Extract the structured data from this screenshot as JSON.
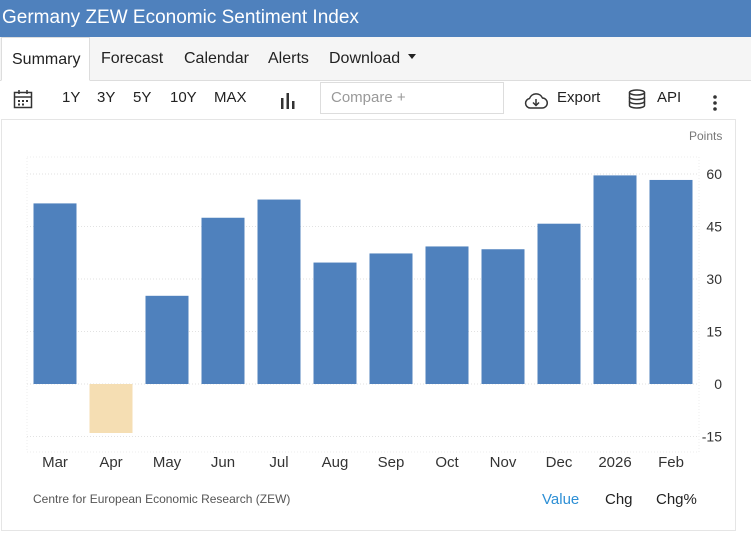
{
  "title": "Germany ZEW Economic Sentiment Index",
  "tabs": [
    {
      "label": "Summary",
      "active": true
    },
    {
      "label": "Forecast"
    },
    {
      "label": "Calendar"
    },
    {
      "label": "Alerts"
    },
    {
      "label": "Download"
    }
  ],
  "toolbar": {
    "ranges": [
      "1Y",
      "3Y",
      "5Y",
      "10Y",
      "MAX"
    ],
    "compare_placeholder": "Compare +",
    "export_label": "Export",
    "api_label": "API"
  },
  "unit_label": "Points",
  "source": "Centre for European Economic Research (ZEW)",
  "modes": [
    "Value",
    "Chg",
    "Chg%"
  ],
  "colors": {
    "header": "#4f81bd",
    "positive_bar": "#4f81bd",
    "negative_bar": "#f5deb3",
    "active_mode": "#2d8fd5"
  },
  "chart_data": {
    "type": "bar",
    "categories": [
      "Mar",
      "Apr",
      "May",
      "Jun",
      "Jul",
      "Aug",
      "Sep",
      "Oct",
      "Nov",
      "Dec",
      "2026",
      "Feb"
    ],
    "values": [
      51.6,
      -14.0,
      25.2,
      47.5,
      52.7,
      34.7,
      37.3,
      39.3,
      38.5,
      45.8,
      59.6,
      58.3
    ],
    "y_ticks": [
      60,
      45,
      30,
      15,
      0,
      -15
    ],
    "ylim": [
      -20,
      66
    ],
    "grid": true
  }
}
